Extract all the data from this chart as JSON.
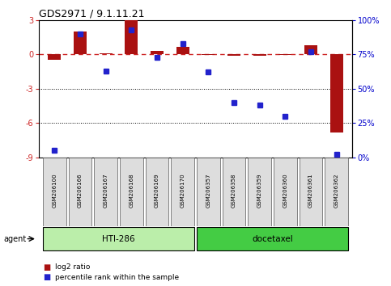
{
  "title": "GDS2971 / 9.1.11.21",
  "samples": [
    "GSM206100",
    "GSM206166",
    "GSM206167",
    "GSM206168",
    "GSM206169",
    "GSM206170",
    "GSM206357",
    "GSM206358",
    "GSM206359",
    "GSM206360",
    "GSM206361",
    "GSM206362"
  ],
  "log2_ratio": [
    -0.5,
    2.0,
    0.12,
    3.0,
    0.3,
    0.65,
    -0.05,
    -0.1,
    -0.1,
    -0.05,
    0.8,
    -6.8
  ],
  "percentile": [
    5,
    90,
    63,
    93,
    73,
    83,
    62,
    40,
    38,
    30,
    77,
    2
  ],
  "bar_color": "#aa1111",
  "point_color": "#2222cc",
  "hti286_color": "#bbeeaa",
  "docetaxel_color": "#44cc44",
  "ylim_left": [
    -9,
    3
  ],
  "ylim_right": [
    0,
    100
  ],
  "yticks_left": [
    -9,
    -6,
    -3,
    0,
    3
  ],
  "yticks_right": [
    0,
    25,
    50,
    75,
    100
  ],
  "ytick_labels_right": [
    "0%",
    "25%",
    "50%",
    "75%",
    "100%"
  ],
  "dashed_color": "#cc2222",
  "bg_color": "#ffffff"
}
